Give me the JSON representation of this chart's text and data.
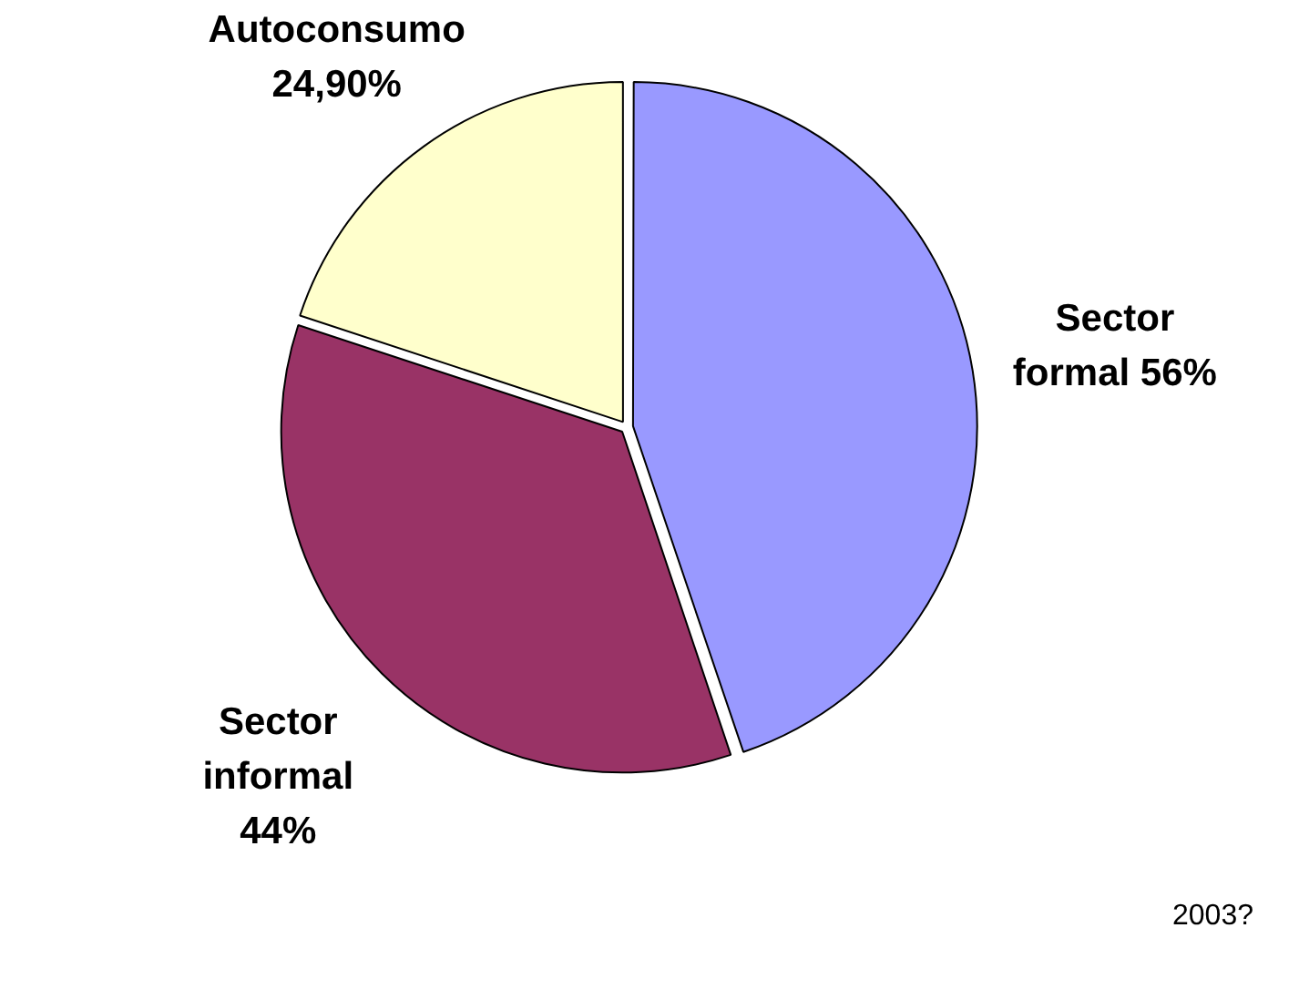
{
  "chart_data": {
    "type": "pie",
    "categories": [
      "Sector formal",
      "Sector informal",
      "Autoconsumo"
    ],
    "values": [
      56,
      44,
      24.9
    ],
    "value_labels": [
      "56%",
      "44%",
      "24,90%"
    ],
    "colors": [
      "#9999ff",
      "#993366",
      "#ffffcc"
    ],
    "legend": false,
    "annotations": [
      "2003?"
    ]
  }
}
